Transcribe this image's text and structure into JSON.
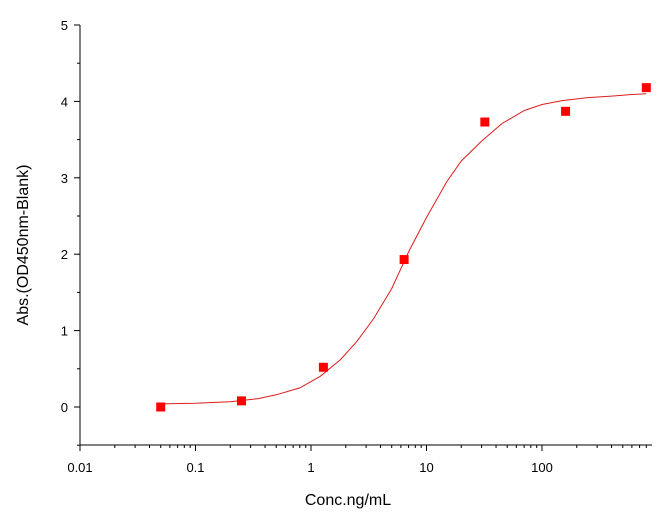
{
  "chart_data": {
    "type": "scatter",
    "xlabel": "Conc.ng/mL",
    "ylabel": "Abs.(OD450nm-Blank)",
    "x_scale": "log",
    "xlim": [
      0.01,
      900
    ],
    "ylim": [
      -0.5,
      5
    ],
    "x_ticks": [
      0.01,
      0.1,
      1,
      10,
      100
    ],
    "x_tick_labels": [
      "0.01",
      "0.1",
      "1",
      "10",
      "100"
    ],
    "y_ticks": [
      0,
      1,
      2,
      3,
      4,
      5
    ],
    "y_tick_labels": [
      "0",
      "1",
      "2",
      "3",
      "4",
      "5"
    ],
    "grid": false,
    "marker_color": "#ff0000",
    "curve_color": "#dd1c1c",
    "series": [
      {
        "points": [
          {
            "x": 0.05,
            "y": 0.0
          },
          {
            "x": 0.25,
            "y": 0.08
          },
          {
            "x": 1.28,
            "y": 0.52
          },
          {
            "x": 6.4,
            "y": 1.93
          },
          {
            "x": 32,
            "y": 3.73
          },
          {
            "x": 160,
            "y": 3.87
          },
          {
            "x": 800,
            "y": 4.18
          }
        ]
      }
    ],
    "fit_curve": {
      "x": [
        0.05,
        0.1,
        0.2,
        0.35,
        0.5,
        0.8,
        1.2,
        1.8,
        2.5,
        3.5,
        5,
        7,
        10,
        15,
        20,
        30,
        45,
        70,
        100,
        150,
        250,
        400,
        600,
        800
      ],
      "y": [
        0.04,
        0.05,
        0.07,
        0.11,
        0.16,
        0.25,
        0.4,
        0.62,
        0.86,
        1.16,
        1.55,
        2.03,
        2.48,
        2.95,
        3.22,
        3.48,
        3.71,
        3.88,
        3.96,
        4.01,
        4.05,
        4.07,
        4.09,
        4.1
      ]
    }
  }
}
